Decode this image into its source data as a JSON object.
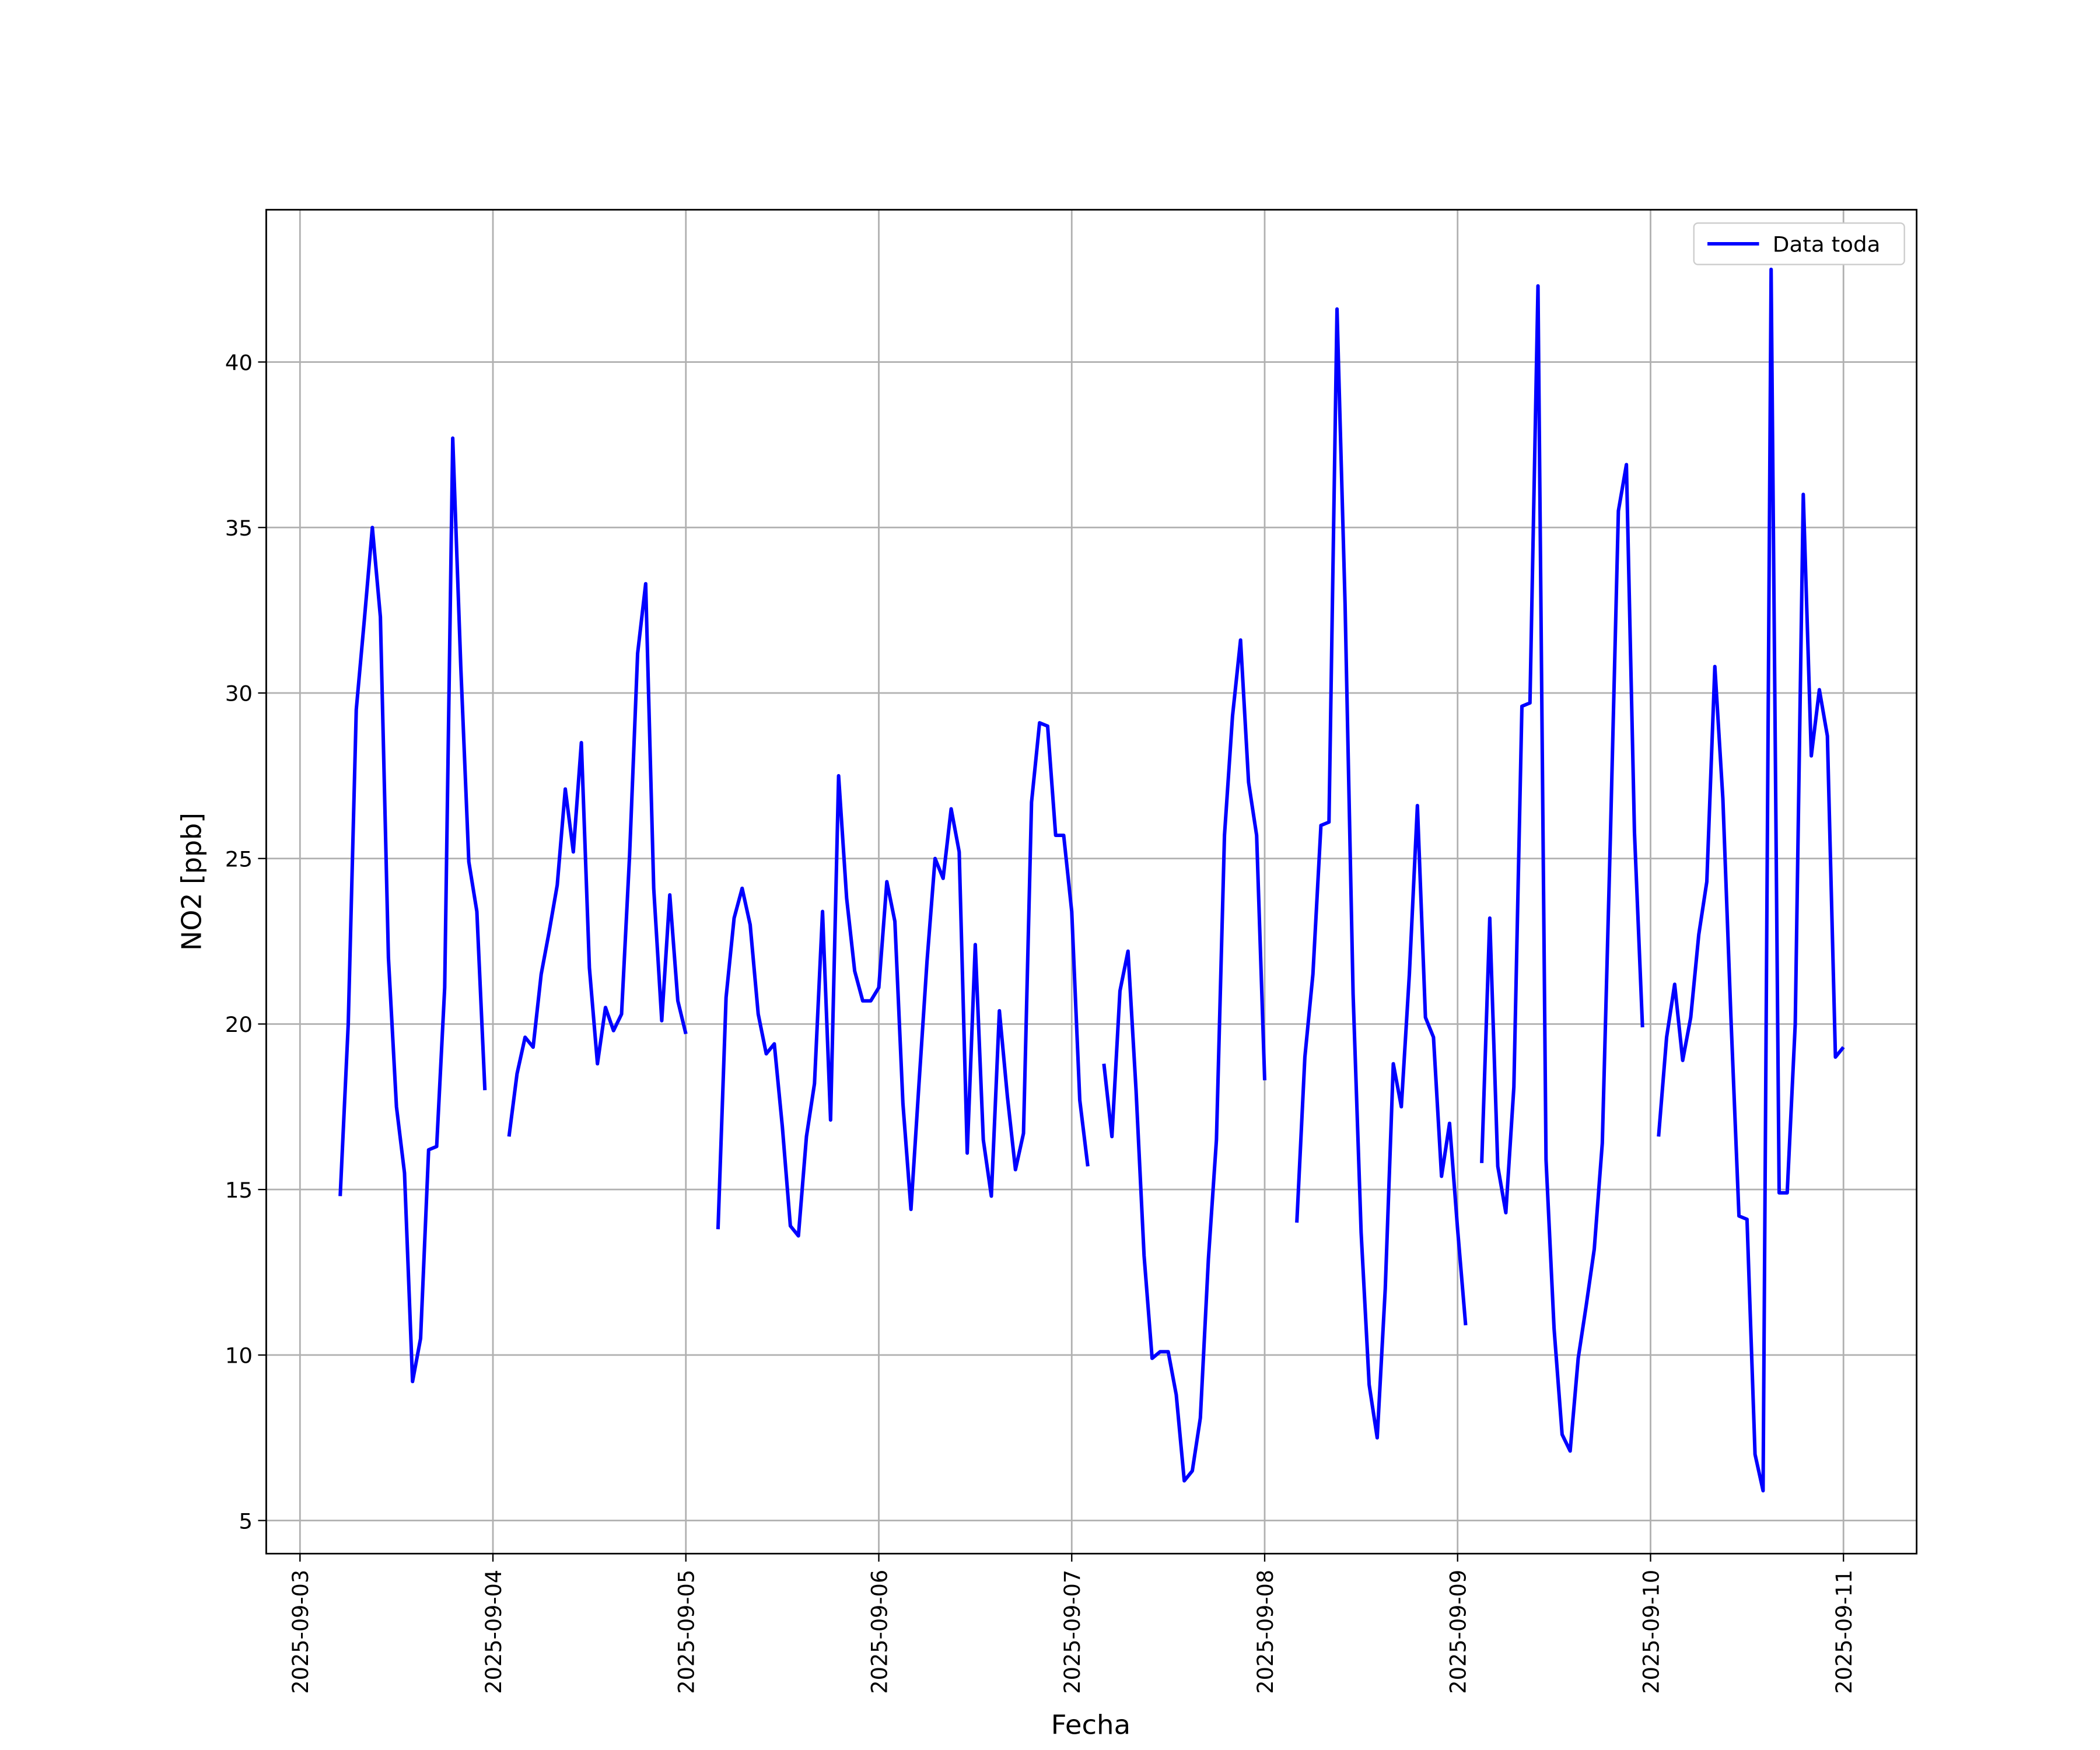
{
  "chart_data": {
    "type": "line",
    "x_label": "Fecha",
    "y_label": "NO2 [ppb]",
    "xlim": [
      "2025-09-02 19:48",
      "2025-09-11 09:06"
    ],
    "ylim": [
      4.0,
      44.6
    ],
    "xticks": [
      "2025-09-03",
      "2025-09-04",
      "2025-09-05",
      "2025-09-06",
      "2025-09-07",
      "2025-09-08",
      "2025-09-09",
      "2025-09-10",
      "2025-09-11"
    ],
    "yticks": [
      5,
      10,
      15,
      20,
      25,
      30,
      35,
      40
    ],
    "grid": true,
    "legend": "upper right",
    "x": [
      "2025-09-03 05:00",
      "2025-09-03 06:00",
      "2025-09-03 07:00",
      "2025-09-03 08:00",
      "2025-09-03 09:00",
      "2025-09-03 10:00",
      "2025-09-03 11:00",
      "2025-09-03 12:00",
      "2025-09-03 13:00",
      "2025-09-03 14:00",
      "2025-09-03 15:00",
      "2025-09-03 16:00",
      "2025-09-03 17:00",
      "2025-09-03 18:00",
      "2025-09-03 19:00",
      "2025-09-03 20:00",
      "2025-09-03 21:00",
      "2025-09-03 22:00",
      "2025-09-03 23:00",
      "2025-09-04 00:00",
      "2025-09-04 01:00",
      "2025-09-04 02:00",
      "2025-09-04 03:00",
      "2025-09-04 04:00",
      "2025-09-04 05:00",
      "2025-09-04 06:00",
      "2025-09-04 07:00",
      "2025-09-04 08:00",
      "2025-09-04 09:00",
      "2025-09-04 10:00",
      "2025-09-04 11:00",
      "2025-09-04 12:00",
      "2025-09-04 13:00",
      "2025-09-04 14:00",
      "2025-09-04 15:00",
      "2025-09-04 16:00",
      "2025-09-04 17:00",
      "2025-09-04 18:00",
      "2025-09-04 19:00",
      "2025-09-04 20:00",
      "2025-09-04 21:00",
      "2025-09-04 22:00",
      "2025-09-04 23:00",
      "2025-09-05 00:00",
      "2025-09-05 01:00",
      "2025-09-05 02:00",
      "2025-09-05 03:00",
      "2025-09-05 04:00",
      "2025-09-05 05:00",
      "2025-09-05 06:00",
      "2025-09-05 07:00",
      "2025-09-05 08:00",
      "2025-09-05 09:00",
      "2025-09-05 10:00",
      "2025-09-05 11:00",
      "2025-09-05 12:00",
      "2025-09-05 13:00",
      "2025-09-05 14:00",
      "2025-09-05 15:00",
      "2025-09-05 16:00",
      "2025-09-05 17:00",
      "2025-09-05 18:00",
      "2025-09-05 19:00",
      "2025-09-05 20:00",
      "2025-09-05 21:00",
      "2025-09-05 22:00",
      "2025-09-05 23:00",
      "2025-09-06 00:00",
      "2025-09-06 01:00",
      "2025-09-06 02:00",
      "2025-09-06 03:00",
      "2025-09-06 04:00",
      "2025-09-06 05:00",
      "2025-09-06 06:00",
      "2025-09-06 07:00",
      "2025-09-06 08:00",
      "2025-09-06 09:00",
      "2025-09-06 10:00",
      "2025-09-06 11:00",
      "2025-09-06 12:00",
      "2025-09-06 13:00",
      "2025-09-06 14:00",
      "2025-09-06 15:00",
      "2025-09-06 16:00",
      "2025-09-06 17:00",
      "2025-09-06 18:00",
      "2025-09-06 19:00",
      "2025-09-06 20:00",
      "2025-09-06 21:00",
      "2025-09-06 22:00",
      "2025-09-06 23:00",
      "2025-09-07 00:00",
      "2025-09-07 01:00",
      "2025-09-07 02:00",
      "2025-09-07 03:00",
      "2025-09-07 04:00",
      "2025-09-07 05:00",
      "2025-09-07 06:00",
      "2025-09-07 07:00",
      "2025-09-07 08:00",
      "2025-09-07 09:00",
      "2025-09-07 10:00",
      "2025-09-07 11:00",
      "2025-09-07 12:00",
      "2025-09-07 13:00",
      "2025-09-07 14:00",
      "2025-09-07 15:00",
      "2025-09-07 16:00",
      "2025-09-07 17:00",
      "2025-09-07 18:00",
      "2025-09-07 19:00",
      "2025-09-07 20:00",
      "2025-09-07 21:00",
      "2025-09-07 22:00",
      "2025-09-07 23:00",
      "2025-09-08 00:00",
      "2025-09-08 01:00",
      "2025-09-08 02:00",
      "2025-09-08 03:00",
      "2025-09-08 04:00",
      "2025-09-08 05:00",
      "2025-09-08 06:00",
      "2025-09-08 07:00",
      "2025-09-08 08:00",
      "2025-09-08 09:00",
      "2025-09-08 10:00",
      "2025-09-08 11:00",
      "2025-09-08 12:00",
      "2025-09-08 13:00",
      "2025-09-08 14:00",
      "2025-09-08 15:00",
      "2025-09-08 16:00",
      "2025-09-08 17:00",
      "2025-09-08 18:00",
      "2025-09-08 19:00",
      "2025-09-08 20:00",
      "2025-09-08 21:00",
      "2025-09-08 22:00",
      "2025-09-08 23:00",
      "2025-09-09 00:00",
      "2025-09-09 01:00",
      "2025-09-09 02:00",
      "2025-09-09 03:00",
      "2025-09-09 04:00",
      "2025-09-09 05:00",
      "2025-09-09 06:00",
      "2025-09-09 07:00",
      "2025-09-09 08:00",
      "2025-09-09 09:00",
      "2025-09-09 10:00",
      "2025-09-09 11:00",
      "2025-09-09 12:00",
      "2025-09-09 13:00",
      "2025-09-09 14:00",
      "2025-09-09 15:00",
      "2025-09-09 16:00",
      "2025-09-09 17:00",
      "2025-09-09 18:00",
      "2025-09-09 19:00",
      "2025-09-09 20:00",
      "2025-09-09 21:00",
      "2025-09-09 22:00",
      "2025-09-09 23:00",
      "2025-09-10 00:00",
      "2025-09-10 01:00",
      "2025-09-10 02:00",
      "2025-09-10 03:00",
      "2025-09-10 04:00",
      "2025-09-10 05:00",
      "2025-09-10 06:00",
      "2025-09-10 07:00",
      "2025-09-10 08:00",
      "2025-09-10 09:00",
      "2025-09-10 10:00",
      "2025-09-10 11:00",
      "2025-09-10 12:00",
      "2025-09-10 13:00",
      "2025-09-10 14:00",
      "2025-09-10 15:00",
      "2025-09-10 16:00",
      "2025-09-10 17:00",
      "2025-09-10 18:00",
      "2025-09-10 19:00",
      "2025-09-10 20:00",
      "2025-09-10 21:00",
      "2025-09-10 22:00",
      "2025-09-10 23:00",
      "2025-09-11 00:00"
    ],
    "series": [
      {
        "name": "Data toda",
        "color": "#0000ff",
        "values": [
          14.8,
          20.0,
          29.5,
          32.2,
          35.0,
          32.3,
          22.0,
          17.5,
          15.5,
          9.2,
          10.5,
          16.2,
          16.3,
          21.1,
          37.7,
          30.8,
          24.9,
          23.4,
          18.0,
          null,
          null,
          16.6,
          18.5,
          19.6,
          19.3,
          21.5,
          22.8,
          24.2,
          27.1,
          25.2,
          28.5,
          21.7,
          18.8,
          20.5,
          19.8,
          20.3,
          25.1,
          31.2,
          33.3,
          24.1,
          20.1,
          23.9,
          20.7,
          19.7,
          null,
          null,
          null,
          13.8,
          20.8,
          23.2,
          24.1,
          23.0,
          20.3,
          19.1,
          19.4,
          16.9,
          13.9,
          13.6,
          16.6,
          18.2,
          23.4,
          17.1,
          27.5,
          23.8,
          21.6,
          20.7,
          20.7,
          21.1,
          24.3,
          23.1,
          17.6,
          14.4,
          18.2,
          21.9,
          25.0,
          24.4,
          26.5,
          25.2,
          16.1,
          22.4,
          16.5,
          14.8,
          20.4,
          17.8,
          15.6,
          16.7,
          26.7,
          29.1,
          29.0,
          25.7,
          25.7,
          23.4,
          17.7,
          15.7,
          null,
          18.8,
          16.6,
          21.0,
          22.2,
          18.0,
          13.0,
          9.9,
          10.1,
          10.1,
          8.8,
          6.2,
          6.5,
          8.1,
          12.9,
          16.5,
          25.7,
          29.3,
          31.6,
          27.3,
          25.7,
          18.3,
          null,
          null,
          null,
          14.0,
          19.0,
          21.5,
          26.0,
          26.1,
          41.6,
          32.7,
          20.9,
          13.7,
          9.1,
          7.5,
          12.0,
          18.8,
          17.5,
          21.5,
          26.6,
          20.2,
          19.6,
          15.4,
          17.0,
          13.8,
          10.9,
          null,
          15.8,
          23.2,
          15.7,
          14.3,
          18.1,
          29.6,
          29.7,
          42.3,
          15.9,
          10.8,
          7.6,
          7.1,
          9.9,
          11.5,
          13.2,
          16.4,
          25.6,
          35.5,
          36.9,
          25.8,
          19.9,
          null,
          16.6,
          19.6,
          21.2,
          18.9,
          20.2,
          22.7,
          24.3,
          30.8,
          26.8,
          20.2,
          14.2,
          14.1,
          7.0,
          5.9,
          42.8,
          14.9,
          14.9,
          20.0,
          36.0,
          28.1,
          30.1,
          28.7,
          19.0,
          19.3
        ]
      }
    ]
  }
}
